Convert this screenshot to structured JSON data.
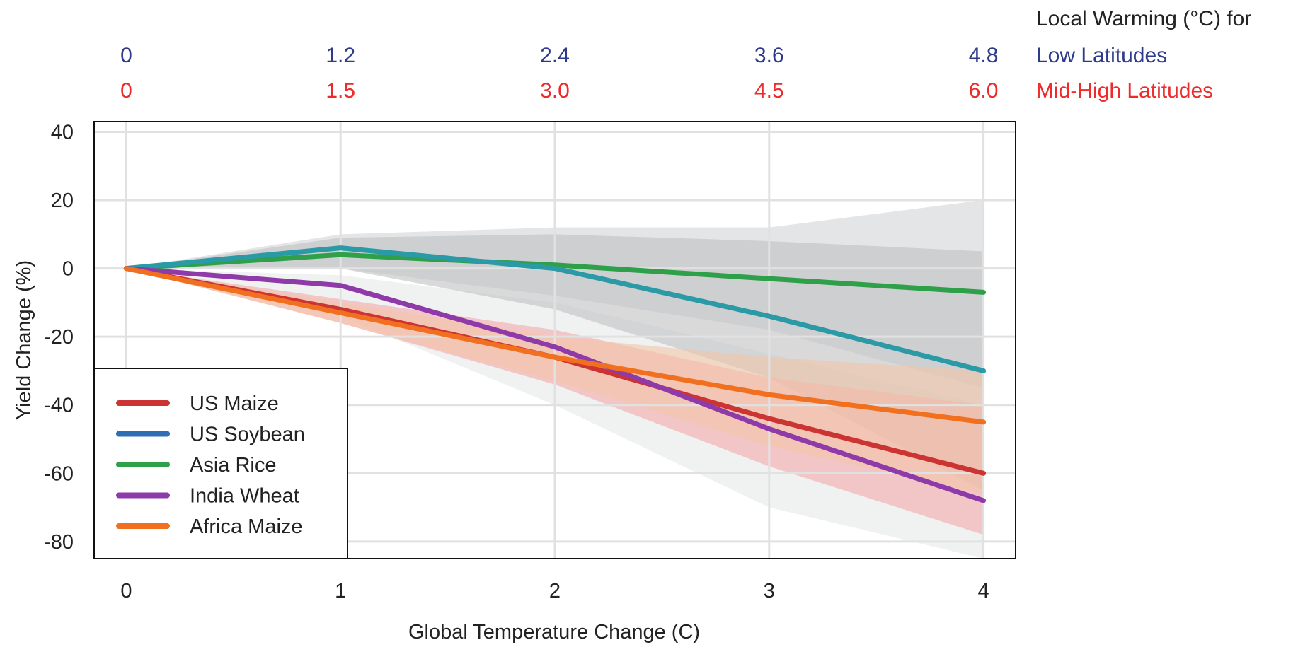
{
  "chart_data": {
    "type": "line",
    "xlabel": "Global Temperature Change (C)",
    "ylabel": "Yield Change (%)",
    "xlim": [
      -0.15,
      4.15
    ],
    "ylim": [
      -85,
      43
    ],
    "x_ticks": [
      0,
      1,
      2,
      3,
      4
    ],
    "y_ticks": [
      40,
      20,
      0,
      -20,
      -40,
      -60,
      -80
    ],
    "x_tick_labels": [
      "0",
      "1",
      "2",
      "3",
      "4"
    ],
    "y_tick_labels": [
      "40",
      "20",
      "0",
      "-20",
      "-40",
      "-60",
      "-80"
    ],
    "grid": true,
    "legend_position": "bottom-left",
    "top_axis": {
      "title": "Local Warming (°C) for",
      "rows": [
        {
          "name": "Low Latitudes",
          "color": "#2e3a8c",
          "labels": [
            "0",
            "1.2",
            "2.4",
            "3.6",
            "4.8"
          ]
        },
        {
          "name": "Mid-High Latitudes",
          "color": "#ee2a2a",
          "labels": [
            "0",
            "1.5",
            "3.0",
            "4.5",
            "6.0"
          ]
        }
      ]
    },
    "x": [
      0,
      1,
      2,
      3,
      4
    ],
    "series": [
      {
        "name": "US Maize",
        "color": "#cc3333",
        "values": [
          0,
          -12,
          -26,
          -44,
          -60
        ],
        "band_color": "#f4a9a9",
        "band_low": [
          0,
          -16,
          -34,
          -58,
          -78
        ],
        "band_high": [
          0,
          -9,
          -18,
          -32,
          -40
        ]
      },
      {
        "name": "US Soybean",
        "color": "#2f6db5",
        "line_color": "#2a9aa6",
        "values": [
          0,
          6,
          0,
          -14,
          -30
        ],
        "band_color": "#bfc0c2",
        "band_low": [
          0,
          0,
          -12,
          -32,
          -65
        ],
        "band_high": [
          0,
          9,
          10,
          8,
          5
        ]
      },
      {
        "name": "Asia Rice",
        "color": "#2fa04a",
        "values": [
          0,
          4,
          1,
          -3,
          -7
        ],
        "band_color": "#d2d4d6",
        "band_low": [
          0,
          0,
          -8,
          -18,
          -35
        ],
        "band_high": [
          0,
          10,
          12,
          12,
          20
        ]
      },
      {
        "name": "India Wheat",
        "color": "#8e3aa8",
        "values": [
          0,
          -5,
          -23,
          -47,
          -68
        ],
        "band_color": "#e6e9ea",
        "band_low": [
          0,
          -14,
          -40,
          -70,
          -88
        ],
        "band_high": [
          0,
          -2,
          -10,
          -25,
          -40
        ]
      },
      {
        "name": "Africa Maize",
        "color": "#f07020",
        "values": [
          0,
          -13,
          -26,
          -37,
          -45
        ],
        "band_color": "#f2c4a8",
        "band_low": [
          0,
          -16,
          -33,
          -52,
          -66
        ],
        "band_high": [
          0,
          -10,
          -20,
          -26,
          -30
        ]
      }
    ]
  }
}
